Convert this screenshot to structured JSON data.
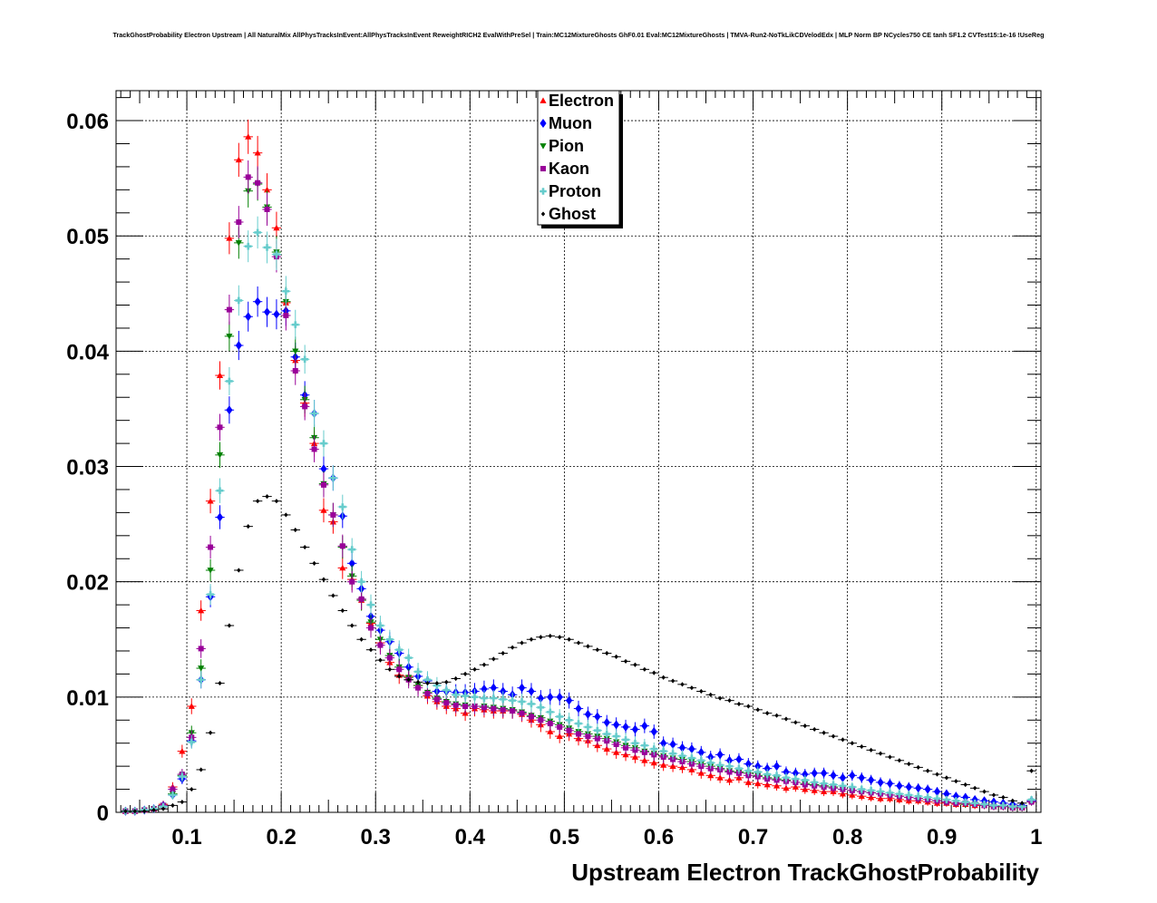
{
  "title": "TrackGhostProbability Electron Upstream | All NaturalMix AllPhysTracksInEvent:AllPhysTracksInEvent ReweightRICH2 EvalWithPreSel | Train:MC12MixtureGhosts GhF0.01 Eval:MC12MixtureGhosts | TMVA-Run2-NoTkLikCDVelodEdx | MLP Norm BP NCycles750 CE tanh SF1.2 CVTest15:1e-16 !UseReg",
  "chart_data": {
    "type": "scatter",
    "title": "TrackGhostProbability Electron Upstream",
    "xlabel": "Upstream Electron TrackGhostProbability",
    "ylabel": "",
    "xlim": [
      0.025,
      1.005
    ],
    "ylim": [
      0,
      0.0626
    ],
    "grid": true,
    "legend_position": "top-center",
    "x_ticks": [
      0.1,
      0.2,
      0.3,
      0.4,
      0.5,
      0.6,
      0.7,
      0.8,
      0.9,
      1
    ],
    "x_tick_labels": [
      "0.1",
      "0.2",
      "0.3",
      "0.4",
      "0.5",
      "0.6",
      "0.7",
      "0.8",
      "0.9",
      "1"
    ],
    "y_ticks": [
      0,
      0.01,
      0.02,
      0.03,
      0.04,
      0.05,
      0.06
    ],
    "y_tick_labels": [
      "0",
      "0.01",
      "0.02",
      "0.03",
      "0.04",
      "0.05",
      "0.06"
    ],
    "bin_centers": [
      0.035,
      0.045,
      0.055,
      0.065,
      0.075,
      0.085,
      0.095,
      0.105,
      0.115,
      0.125,
      0.135,
      0.145,
      0.155,
      0.165,
      0.175,
      0.185,
      0.195,
      0.205,
      0.215,
      0.225,
      0.235,
      0.245,
      0.255,
      0.265,
      0.275,
      0.285,
      0.295,
      0.305,
      0.315,
      0.325,
      0.335,
      0.345,
      0.355,
      0.365,
      0.375,
      0.385,
      0.395,
      0.405,
      0.415,
      0.425,
      0.435,
      0.445,
      0.455,
      0.465,
      0.475,
      0.485,
      0.495,
      0.505,
      0.515,
      0.525,
      0.535,
      0.545,
      0.555,
      0.565,
      0.575,
      0.585,
      0.595,
      0.605,
      0.615,
      0.625,
      0.635,
      0.645,
      0.655,
      0.665,
      0.675,
      0.685,
      0.695,
      0.705,
      0.715,
      0.725,
      0.735,
      0.745,
      0.755,
      0.765,
      0.775,
      0.785,
      0.795,
      0.805,
      0.815,
      0.825,
      0.835,
      0.845,
      0.855,
      0.865,
      0.875,
      0.885,
      0.895,
      0.905,
      0.915,
      0.925,
      0.935,
      0.945,
      0.955,
      0.965,
      0.975,
      0.985,
      0.995
    ],
    "series": [
      {
        "name": "Electron",
        "color": "#ff0000",
        "marker": "triangle-up",
        "errors": true,
        "values": [
          0.0001,
          0.0001,
          0.0002,
          0.0003,
          0.0007,
          0.0022,
          0.0053,
          0.0092,
          0.0175,
          0.027,
          0.0379,
          0.0498,
          0.0566,
          0.0586,
          0.0572,
          0.054,
          0.0507,
          0.0442,
          0.0392,
          0.0355,
          0.032,
          0.0262,
          0.0252,
          0.0212,
          0.0202,
          0.0184,
          0.0164,
          0.0147,
          0.013,
          0.0119,
          0.0118,
          0.011,
          0.0101,
          0.0096,
          0.0092,
          0.009,
          0.0086,
          0.009,
          0.0089,
          0.0088,
          0.0088,
          0.0088,
          0.0085,
          0.008,
          0.0076,
          0.007,
          0.0066,
          0.0068,
          0.0064,
          0.0062,
          0.0058,
          0.0055,
          0.0052,
          0.005,
          0.0048,
          0.0045,
          0.0043,
          0.0041,
          0.004,
          0.0039,
          0.0037,
          0.0034,
          0.0032,
          0.003,
          0.0028,
          0.003,
          0.0026,
          0.0025,
          0.0024,
          0.0023,
          0.0021,
          0.0022,
          0.002,
          0.0019,
          0.0018,
          0.0018,
          0.0016,
          0.0015,
          0.0014,
          0.0013,
          0.0012,
          0.0012,
          0.0011,
          0.001,
          0.001,
          0.0009,
          0.0008,
          0.0008,
          0.0007,
          0.0007,
          0.0006,
          0.0006,
          0.0005,
          0.0005,
          0.0004,
          0.0004,
          0.001
        ]
      },
      {
        "name": "Muon",
        "color": "#0000ff",
        "marker": "diamond",
        "errors": true,
        "values": [
          0.0001,
          0.0001,
          0.0002,
          0.0003,
          0.0006,
          0.0015,
          0.0029,
          0.0062,
          0.0115,
          0.0187,
          0.0256,
          0.0349,
          0.0405,
          0.043,
          0.0443,
          0.0434,
          0.0432,
          0.0435,
          0.0395,
          0.0362,
          0.0346,
          0.0298,
          0.029,
          0.0257,
          0.0216,
          0.0194,
          0.017,
          0.0158,
          0.0148,
          0.0138,
          0.0126,
          0.0118,
          0.0114,
          0.0105,
          0.0105,
          0.0104,
          0.0104,
          0.0105,
          0.0107,
          0.0108,
          0.0105,
          0.0102,
          0.0108,
          0.0105,
          0.0099,
          0.01,
          0.01,
          0.0097,
          0.009,
          0.0085,
          0.0083,
          0.0078,
          0.0076,
          0.0074,
          0.0072,
          0.0075,
          0.007,
          0.006,
          0.0059,
          0.0056,
          0.0055,
          0.0052,
          0.0048,
          0.005,
          0.0045,
          0.0046,
          0.0042,
          0.004,
          0.0038,
          0.004,
          0.0035,
          0.0034,
          0.0033,
          0.0034,
          0.0034,
          0.0032,
          0.003,
          0.0032,
          0.003,
          0.0028,
          0.0026,
          0.0025,
          0.0023,
          0.0022,
          0.0021,
          0.002,
          0.0018,
          0.0016,
          0.0014,
          0.0013,
          0.0011,
          0.001,
          0.0009,
          0.0008,
          0.0007,
          0.0006,
          0.001
        ]
      },
      {
        "name": "Pion",
        "color": "#008000",
        "marker": "triangle-down",
        "errors": true,
        "values": [
          0.0001,
          0.0001,
          0.0002,
          0.0003,
          0.0006,
          0.0016,
          0.0032,
          0.0069,
          0.0125,
          0.021,
          0.031,
          0.0413,
          0.0494,
          0.0539,
          0.0545,
          0.0525,
          0.0486,
          0.0443,
          0.04,
          0.0358,
          0.0325,
          0.0285,
          0.0258,
          0.023,
          0.0205,
          0.0184,
          0.0165,
          0.015,
          0.0136,
          0.0126,
          0.0117,
          0.011,
          0.0104,
          0.0099,
          0.0096,
          0.0094,
          0.0093,
          0.0092,
          0.0092,
          0.0091,
          0.009,
          0.0089,
          0.0087,
          0.0084,
          0.0082,
          0.0079,
          0.0076,
          0.0073,
          0.007,
          0.0068,
          0.0066,
          0.0064,
          0.0061,
          0.0058,
          0.0056,
          0.0053,
          0.0051,
          0.0049,
          0.0047,
          0.0046,
          0.0044,
          0.0042,
          0.004,
          0.0038,
          0.0036,
          0.0035,
          0.0034,
          0.0032,
          0.003,
          0.0029,
          0.0028,
          0.0026,
          0.0025,
          0.0024,
          0.0023,
          0.0022,
          0.002,
          0.0019,
          0.0018,
          0.0017,
          0.0016,
          0.0015,
          0.0014,
          0.0013,
          0.0012,
          0.0011,
          0.001,
          0.0009,
          0.0008,
          0.0007,
          0.0007,
          0.0006,
          0.0005,
          0.0005,
          0.0004,
          0.0004,
          0.0009
        ]
      },
      {
        "name": "Kaon",
        "color": "#990099",
        "marker": "square",
        "errors": true,
        "values": [
          0.0001,
          0.0001,
          0.0002,
          0.0003,
          0.0006,
          0.002,
          0.0033,
          0.0065,
          0.0142,
          0.023,
          0.0334,
          0.0436,
          0.0512,
          0.0551,
          0.0546,
          0.0523,
          0.0482,
          0.0431,
          0.0383,
          0.0352,
          0.0315,
          0.0284,
          0.0258,
          0.0231,
          0.02,
          0.0185,
          0.016,
          0.0145,
          0.0134,
          0.0124,
          0.0115,
          0.0108,
          0.0103,
          0.0098,
          0.0095,
          0.0093,
          0.0092,
          0.0092,
          0.0091,
          0.009,
          0.0089,
          0.0088,
          0.0086,
          0.0083,
          0.008,
          0.0077,
          0.0074,
          0.0071,
          0.0068,
          0.0066,
          0.0064,
          0.0062,
          0.0059,
          0.0056,
          0.0054,
          0.0052,
          0.005,
          0.0048,
          0.0046,
          0.0044,
          0.0042,
          0.004,
          0.0038,
          0.0037,
          0.0035,
          0.0034,
          0.0032,
          0.0031,
          0.0029,
          0.0028,
          0.0027,
          0.0026,
          0.0024,
          0.0023,
          0.0022,
          0.0021,
          0.002,
          0.0019,
          0.0018,
          0.0017,
          0.0016,
          0.0015,
          0.0014,
          0.0013,
          0.0012,
          0.0011,
          0.001,
          0.0009,
          0.0008,
          0.0008,
          0.0007,
          0.0006,
          0.0005,
          0.0005,
          0.0004,
          0.0004,
          0.0009
        ]
      },
      {
        "name": "Proton",
        "color": "#66cccc",
        "marker": "cross",
        "errors": true,
        "values": [
          0.0001,
          0.0001,
          0.0002,
          0.0003,
          0.0005,
          0.0015,
          0.0031,
          0.0061,
          0.0115,
          0.0189,
          0.0279,
          0.0374,
          0.0444,
          0.0491,
          0.0503,
          0.049,
          0.0484,
          0.0452,
          0.0423,
          0.0393,
          0.0346,
          0.032,
          0.029,
          0.0265,
          0.0228,
          0.02,
          0.018,
          0.0162,
          0.015,
          0.0141,
          0.0134,
          0.0122,
          0.0115,
          0.011,
          0.0106,
          0.0102,
          0.0101,
          0.01,
          0.0099,
          0.0099,
          0.0098,
          0.0097,
          0.0096,
          0.0094,
          0.0091,
          0.0087,
          0.0083,
          0.008,
          0.0077,
          0.0074,
          0.0071,
          0.0068,
          0.0066,
          0.0063,
          0.006,
          0.0058,
          0.0055,
          0.0053,
          0.0051,
          0.0049,
          0.0047,
          0.0045,
          0.0043,
          0.0041,
          0.004,
          0.0038,
          0.0036,
          0.0035,
          0.0033,
          0.0032,
          0.003,
          0.0029,
          0.0028,
          0.0026,
          0.0025,
          0.0024,
          0.0023,
          0.0022,
          0.002,
          0.0019,
          0.0018,
          0.0017,
          0.0016,
          0.0015,
          0.0014,
          0.0013,
          0.0012,
          0.0011,
          0.001,
          0.0009,
          0.0008,
          0.0007,
          0.0006,
          0.0006,
          0.0005,
          0.0005,
          0.0011
        ]
      },
      {
        "name": "Ghost",
        "color": "#000000",
        "marker": "small-diamond",
        "errors": false,
        "values": [
          0.0001,
          0.0001,
          0.0001,
          0.0002,
          0.0003,
          0.0006,
          0.0009,
          0.002,
          0.0037,
          0.0069,
          0.0112,
          0.0162,
          0.021,
          0.0248,
          0.027,
          0.0274,
          0.027,
          0.0258,
          0.0245,
          0.023,
          0.0216,
          0.0202,
          0.0188,
          0.0175,
          0.0162,
          0.015,
          0.0141,
          0.0132,
          0.0124,
          0.0118,
          0.0115,
          0.0113,
          0.0112,
          0.0112,
          0.0113,
          0.0116,
          0.012,
          0.0124,
          0.0128,
          0.0133,
          0.0138,
          0.0143,
          0.0147,
          0.015,
          0.0152,
          0.0153,
          0.0152,
          0.015,
          0.0147,
          0.0144,
          0.0141,
          0.0138,
          0.0135,
          0.0131,
          0.0128,
          0.0124,
          0.0121,
          0.0117,
          0.0114,
          0.0111,
          0.0108,
          0.0105,
          0.0102,
          0.0099,
          0.0097,
          0.0094,
          0.0092,
          0.0089,
          0.0086,
          0.0084,
          0.0081,
          0.0078,
          0.0075,
          0.0072,
          0.0069,
          0.0066,
          0.0063,
          0.006,
          0.0057,
          0.0054,
          0.0051,
          0.0048,
          0.0045,
          0.0042,
          0.0039,
          0.0036,
          0.0033,
          0.003,
          0.0027,
          0.0024,
          0.0021,
          0.0018,
          0.0015,
          0.0013,
          0.001,
          0.0008,
          0.0036
        ]
      }
    ]
  }
}
